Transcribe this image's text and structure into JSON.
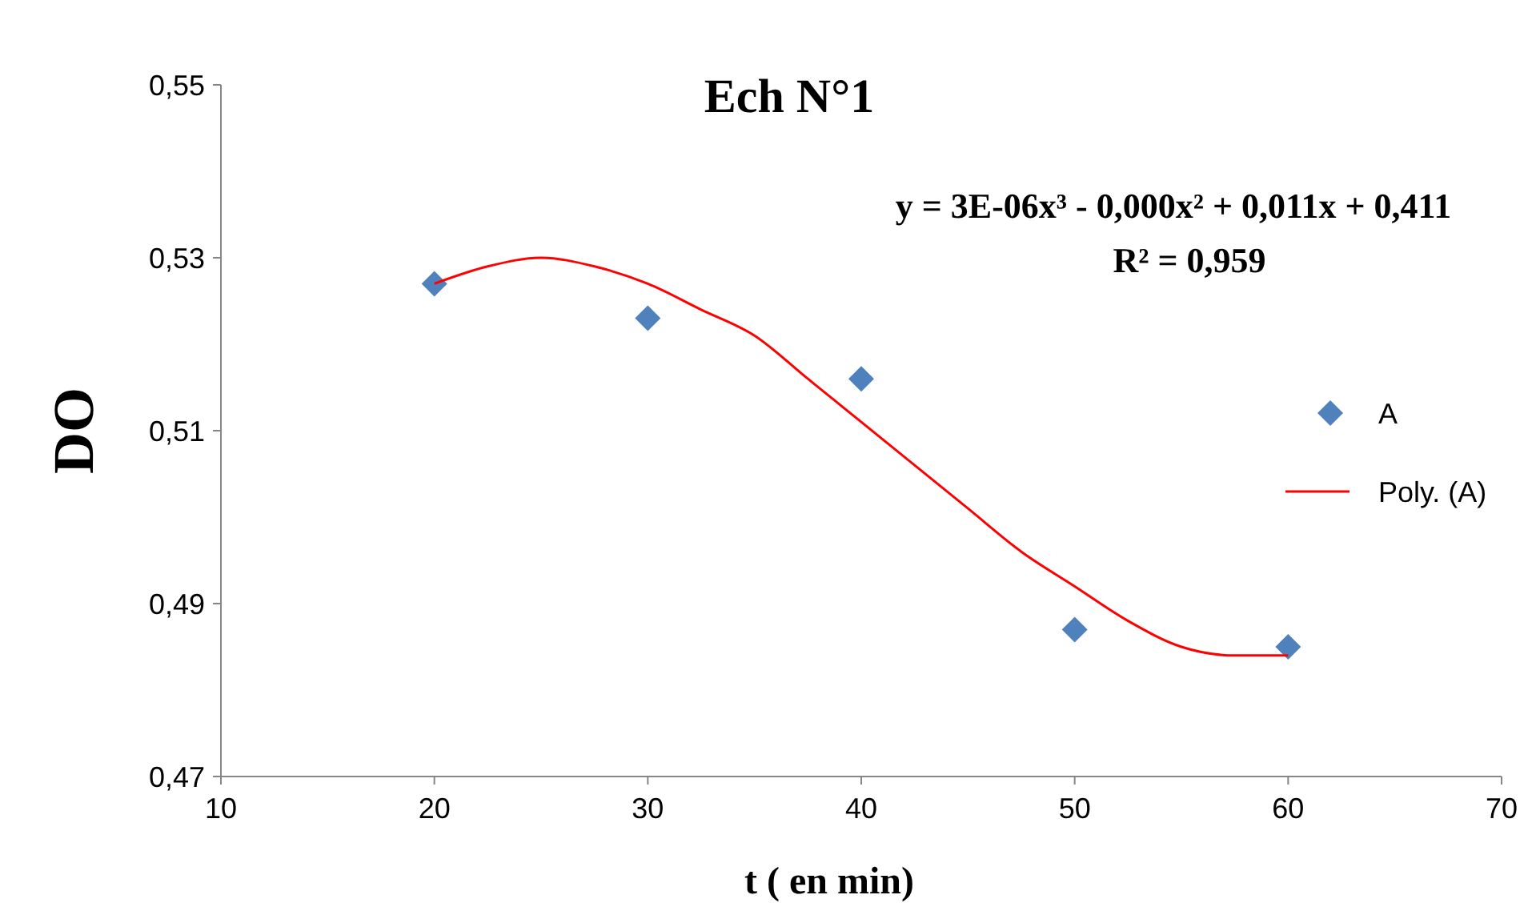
{
  "chart_data": {
    "type": "scatter",
    "title": "Ech N°1",
    "xlabel": "t ( en min)",
    "ylabel": "DO",
    "xlim": [
      10,
      70
    ],
    "xticks": [
      10,
      20,
      30,
      40,
      50,
      60,
      70
    ],
    "ylim": [
      0.47,
      0.55
    ],
    "yticks": [
      {
        "value": 0.47,
        "label": "0,47"
      },
      {
        "value": 0.49,
        "label": "0,49"
      },
      {
        "value": 0.51,
        "label": "0,51"
      },
      {
        "value": 0.53,
        "label": "0,53"
      },
      {
        "value": 0.55,
        "label": "0,55"
      }
    ],
    "x": [
      20,
      30,
      40,
      50,
      60
    ],
    "series": [
      {
        "name": "A",
        "color": "#4f81bd",
        "marker": "diamond",
        "values": [
          0.527,
          0.523,
          0.516,
          0.487,
          0.485
        ]
      },
      {
        "name": "Poly. (A)",
        "type": "line",
        "color": "#ff0000",
        "marker": "none",
        "line_style": "solid",
        "x": [
          20,
          22.5,
          25,
          27.5,
          30,
          32.5,
          35,
          37.5,
          40,
          42.5,
          45,
          47.5,
          50,
          52.5,
          55,
          57.5,
          60
        ],
        "values": [
          0.527,
          0.529,
          0.53,
          0.529,
          0.527,
          0.524,
          0.521,
          0.516,
          0.511,
          0.506,
          0.501,
          0.496,
          0.492,
          0.488,
          0.485,
          0.484,
          0.484
        ]
      }
    ],
    "annotations": [
      "y = 3E-06x³ - 0,000x² + 0,011x + 0,411",
      "R² = 0,959"
    ],
    "grid": false,
    "legend": "right"
  }
}
